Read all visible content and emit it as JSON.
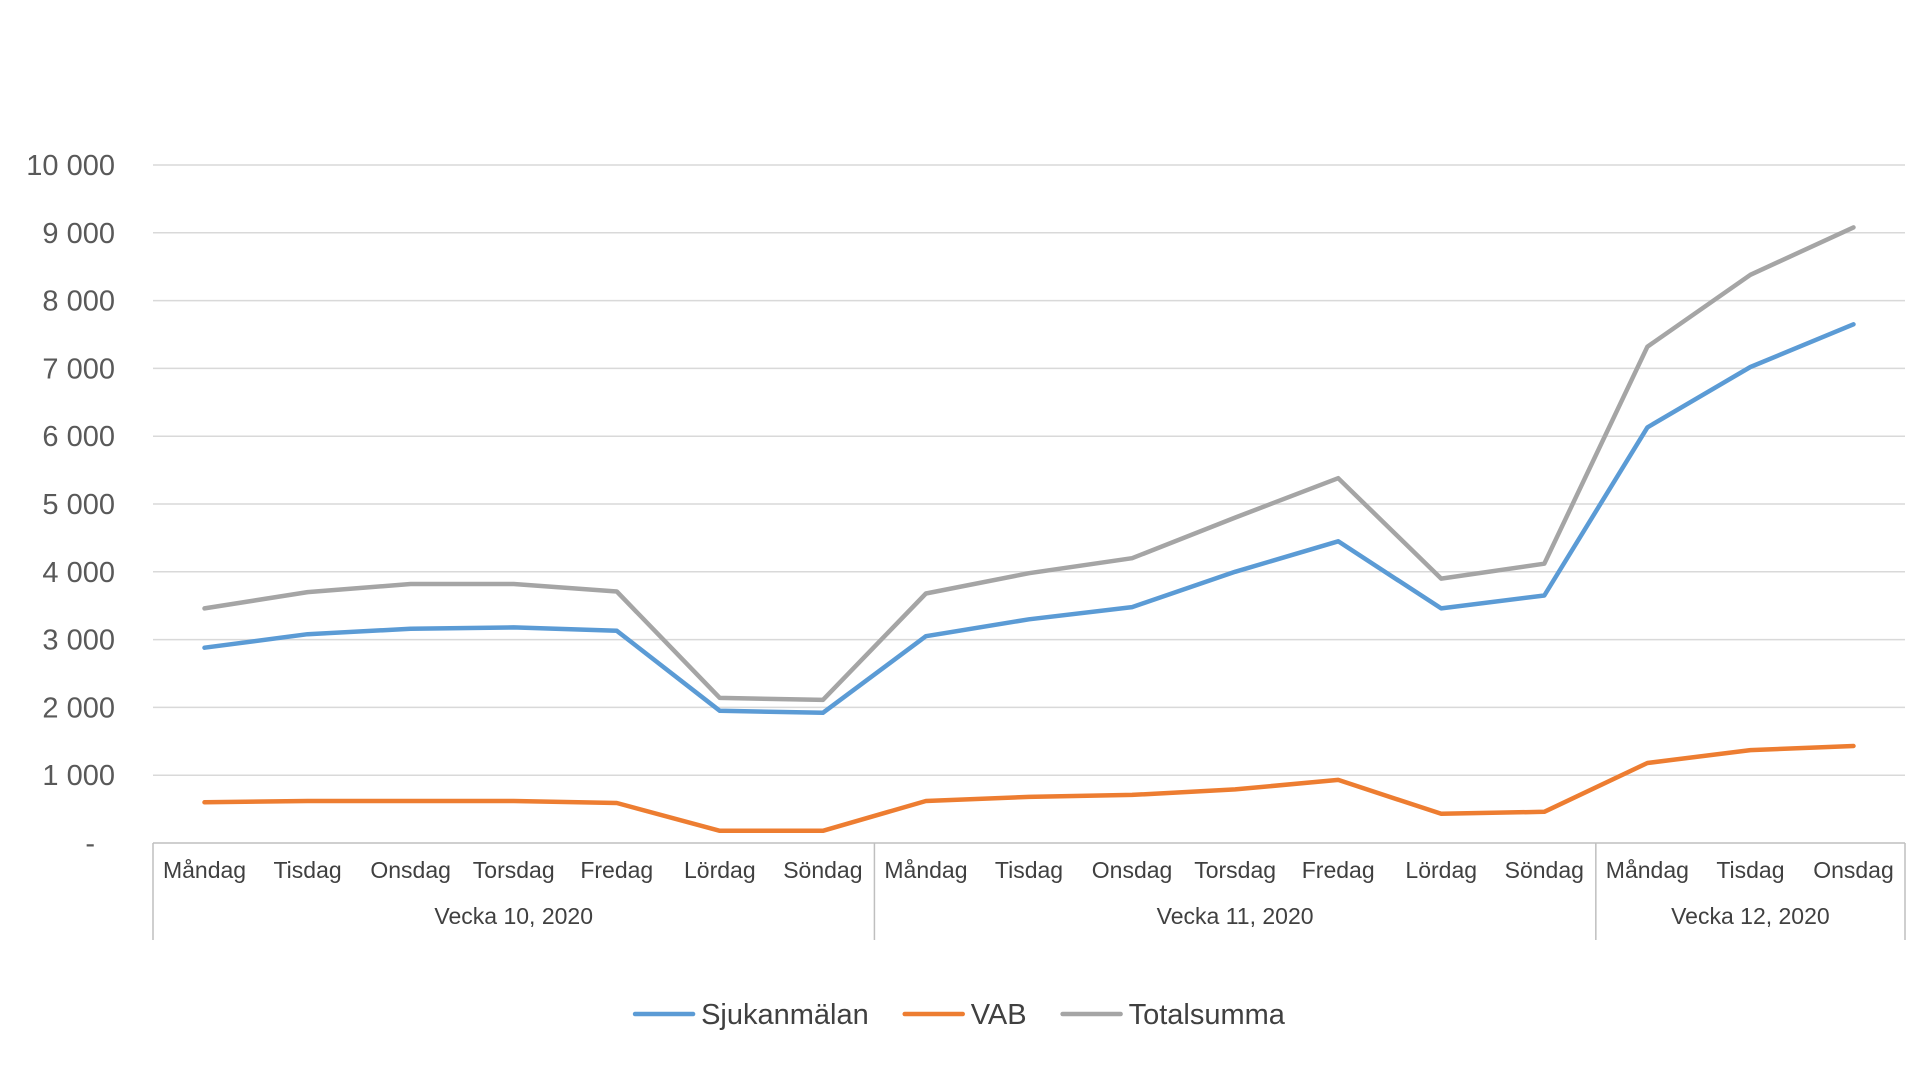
{
  "chart_data": {
    "type": "line",
    "title": "",
    "xlabel": "",
    "ylabel": "",
    "ylim": [
      0,
      10000
    ],
    "yticks": [
      {
        "value": 0,
        "label": "-"
      },
      {
        "value": 1000,
        "label": "1 000"
      },
      {
        "value": 2000,
        "label": "2 000"
      },
      {
        "value": 3000,
        "label": "3 000"
      },
      {
        "value": 4000,
        "label": "4 000"
      },
      {
        "value": 5000,
        "label": "5 000"
      },
      {
        "value": 6000,
        "label": "6 000"
      },
      {
        "value": 7000,
        "label": "7 000"
      },
      {
        "value": 8000,
        "label": "8 000"
      },
      {
        "value": 9000,
        "label": "9 000"
      },
      {
        "value": 10000,
        "label": "10 000"
      }
    ],
    "categories": [
      "Måndag",
      "Tisdag",
      "Onsdag",
      "Torsdag",
      "Fredag",
      "Lördag",
      "Söndag",
      "Måndag",
      "Tisdag",
      "Onsdag",
      "Torsdag",
      "Fredag",
      "Lördag",
      "Söndag",
      "Måndag",
      "Tisdag",
      "Onsdag"
    ],
    "groups": [
      {
        "label": "Vecka 10, 2020",
        "count": 7
      },
      {
        "label": "Vecka 11, 2020",
        "count": 7
      },
      {
        "label": "Vecka 12, 2020",
        "count": 3
      }
    ],
    "series": [
      {
        "name": "Sjukanmälan",
        "color": "#5B9BD5",
        "values": [
          2880,
          3080,
          3160,
          3180,
          3130,
          1950,
          1920,
          3050,
          3300,
          3480,
          4000,
          4450,
          3460,
          3650,
          6130,
          7020,
          7650
        ]
      },
      {
        "name": "VAB",
        "color": "#ED7D31",
        "values": [
          600,
          620,
          620,
          620,
          590,
          180,
          180,
          620,
          680,
          710,
          790,
          930,
          430,
          460,
          1180,
          1370,
          1430
        ]
      },
      {
        "name": "Totalsumma",
        "color": "#A5A5A5",
        "values": [
          3460,
          3700,
          3820,
          3820,
          3710,
          2140,
          2110,
          3680,
          3980,
          4200,
          4800,
          5380,
          3900,
          4120,
          7320,
          8380,
          9080
        ]
      }
    ],
    "grid": true,
    "legend": "bottom-center"
  }
}
